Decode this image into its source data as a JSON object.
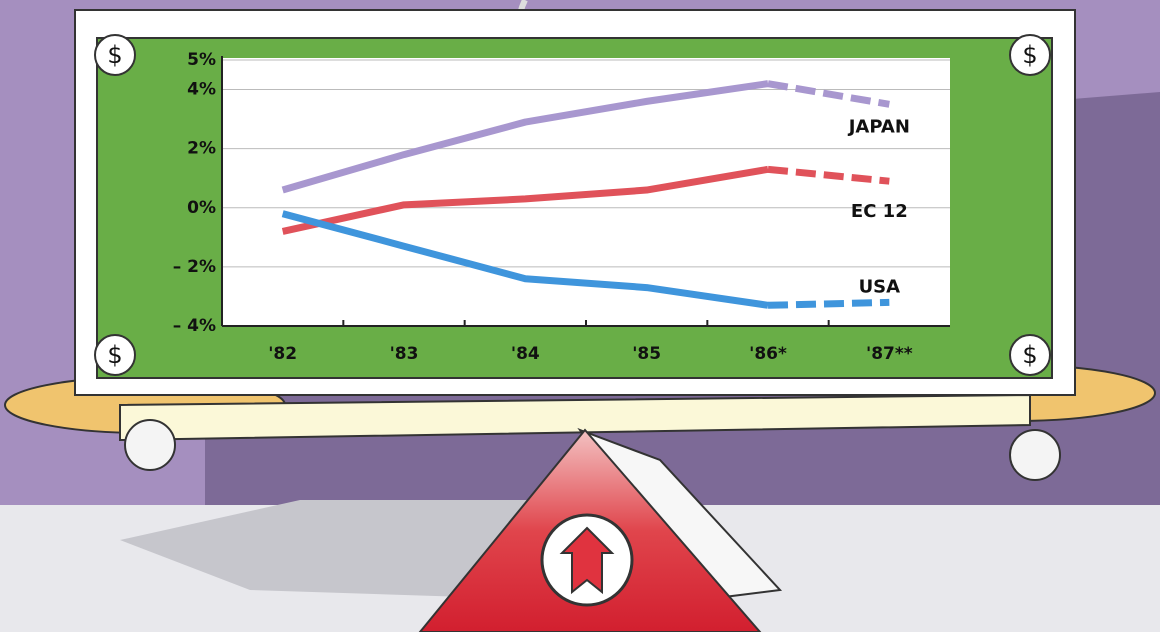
{
  "chart_data": {
    "type": "line",
    "categories": [
      "'82",
      "'83",
      "'84",
      "'85",
      "'86*",
      "'87**"
    ],
    "series": [
      {
        "name": "JAPAN",
        "color": "#a897cf",
        "values": [
          0.6,
          1.8,
          2.9,
          3.6,
          4.2,
          3.5
        ]
      },
      {
        "name": "EC 12",
        "color": "#e0525a",
        "values": [
          -0.8,
          0.1,
          0.3,
          0.6,
          1.3,
          0.9
        ]
      },
      {
        "name": "USA",
        "color": "#3f95dc",
        "values": [
          -0.2,
          -1.3,
          -2.4,
          -2.7,
          -3.3,
          -3.2
        ]
      }
    ],
    "dashed_from_index": 4,
    "ylim": [
      -4,
      5
    ],
    "yticks": [
      {
        "value": 5,
        "label": "5%"
      },
      {
        "value": 4,
        "label": "4%"
      },
      {
        "value": 2,
        "label": "2%"
      },
      {
        "value": 0,
        "label": "0%"
      },
      {
        "value": -2,
        "label": "– 2%"
      },
      {
        "value": -4,
        "label": "– 4%"
      }
    ],
    "grid": true
  }
}
